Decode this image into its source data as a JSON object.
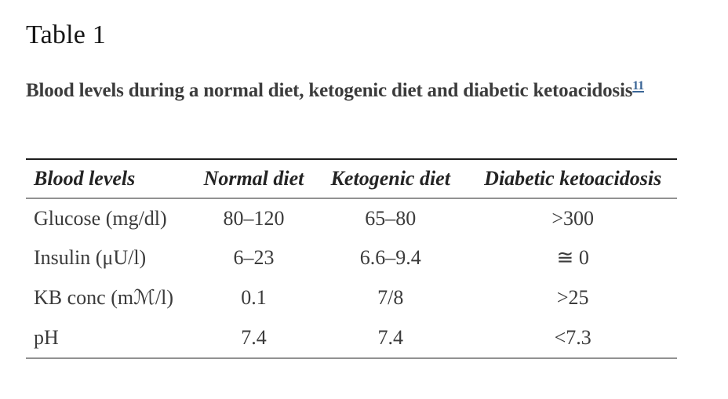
{
  "page": {
    "title": "Table 1",
    "caption": "Blood levels during a normal diet, ketogenic diet and diabetic ketoacidosis",
    "reference_link": "11"
  },
  "colors": {
    "body_text": "#3b3b3b",
    "heading_text": "#151515",
    "header_text": "#242424",
    "link": "#3a6596",
    "border_top": "#1d1d1d",
    "border_gray": "#929292",
    "background": "#ffffff"
  },
  "chart_data": {
    "type": "table",
    "title": "Blood levels during a normal diet, ketogenic diet and diabetic ketoacidosis",
    "columns": [
      "Blood levels",
      "Normal diet",
      "Ketogenic diet",
      "Diabetic ketoacidosis"
    ],
    "rows": [
      [
        "Glucose (mg/dl)",
        "80–120",
        "65–80",
        ">300"
      ],
      [
        "Insulin (μU/l)",
        "6–23",
        "6.6–9.4",
        "≅ 0"
      ],
      [
        "KB conc (mℳ/l)",
        "0.1",
        "7/8",
        ">25"
      ],
      [
        "pH",
        "7.4",
        "7.4",
        "<7.3"
      ]
    ]
  },
  "table": {
    "columns": [
      "Blood levels",
      "Normal diet",
      "Ketogenic diet",
      "Diabetic ketoacidosis"
    ],
    "rows": [
      {
        "label": "Glucose (mg/dl)",
        "normal_diet": "80–120",
        "ketogenic_diet": "65–80",
        "diabetic_ketoacidosis": ">300"
      },
      {
        "label": "Insulin (μU/l)",
        "normal_diet": "6–23",
        "ketogenic_diet": "6.6–9.4",
        "diabetic_ketoacidosis": "≅ 0"
      },
      {
        "label": "KB conc (mℳ/l)",
        "normal_diet": "0.1",
        "ketogenic_diet": "7/8",
        "diabetic_ketoacidosis": ">25"
      },
      {
        "label": "pH",
        "normal_diet": "7.4",
        "ketogenic_diet": "7.4",
        "diabetic_ketoacidosis": "<7.3"
      }
    ]
  }
}
